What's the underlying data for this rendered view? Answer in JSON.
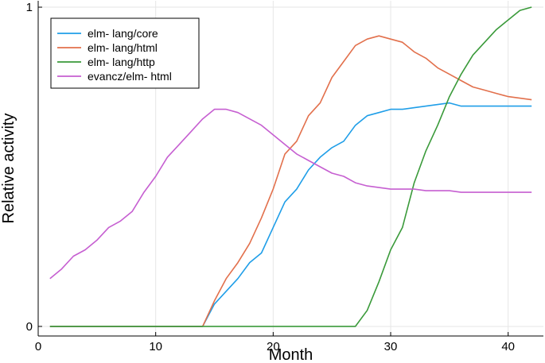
{
  "chart_data": {
    "type": "line",
    "xlabel": "Month",
    "ylabel": "Relative activity",
    "xlim": [
      0,
      43
    ],
    "ylim": [
      -0.03,
      1.02
    ],
    "xticks": [
      0,
      10,
      20,
      30,
      40
    ],
    "yticks": [
      0,
      1
    ],
    "grid": true,
    "legend_position": "top-left",
    "x": [
      1,
      2,
      3,
      4,
      5,
      6,
      7,
      8,
      9,
      10,
      11,
      12,
      13,
      14,
      15,
      16,
      17,
      18,
      19,
      20,
      21,
      22,
      23,
      24,
      25,
      26,
      27,
      28,
      29,
      30,
      31,
      32,
      33,
      34,
      35,
      36,
      37,
      38,
      39,
      40,
      41,
      42
    ],
    "series": [
      {
        "name": "elm- lang/core",
        "color": "#1f9ee8",
        "values": [
          0,
          0,
          0,
          0,
          0,
          0,
          0,
          0,
          0,
          0,
          0,
          0,
          0,
          0,
          0.07,
          0.11,
          0.15,
          0.2,
          0.23,
          0.31,
          0.39,
          0.43,
          0.49,
          0.53,
          0.56,
          0.58,
          0.63,
          0.66,
          0.67,
          0.68,
          0.68,
          0.685,
          0.69,
          0.695,
          0.7,
          0.69,
          0.69,
          0.69,
          0.69,
          0.69,
          0.69,
          0.69
        ]
      },
      {
        "name": "elm- lang/html",
        "color": "#e2704c",
        "values": [
          0,
          0,
          0,
          0,
          0,
          0,
          0,
          0,
          0,
          0,
          0,
          0,
          0,
          0,
          0.08,
          0.15,
          0.2,
          0.26,
          0.34,
          0.43,
          0.54,
          0.58,
          0.66,
          0.7,
          0.78,
          0.83,
          0.88,
          0.9,
          0.91,
          0.9,
          0.89,
          0.86,
          0.84,
          0.81,
          0.79,
          0.77,
          0.75,
          0.74,
          0.73,
          0.72,
          0.715,
          0.71
        ]
      },
      {
        "name": "elm- lang/http",
        "color": "#3a9a3a",
        "values": [
          0,
          0,
          0,
          0,
          0,
          0,
          0,
          0,
          0,
          0,
          0,
          0,
          0,
          0,
          0,
          0,
          0,
          0,
          0,
          0,
          0,
          0,
          0,
          0,
          0,
          0,
          0,
          0.05,
          0.14,
          0.24,
          0.31,
          0.45,
          0.55,
          0.63,
          0.72,
          0.79,
          0.85,
          0.89,
          0.93,
          0.96,
          0.99,
          1.0
        ]
      },
      {
        "name": "evancz/elm- html",
        "color": "#c65fd1",
        "values": [
          0.15,
          0.18,
          0.22,
          0.24,
          0.27,
          0.31,
          0.33,
          0.36,
          0.42,
          0.47,
          0.53,
          0.57,
          0.61,
          0.65,
          0.68,
          0.68,
          0.67,
          0.65,
          0.63,
          0.6,
          0.57,
          0.54,
          0.52,
          0.5,
          0.48,
          0.47,
          0.45,
          0.44,
          0.435,
          0.43,
          0.43,
          0.43,
          0.425,
          0.425,
          0.425,
          0.42,
          0.42,
          0.42,
          0.42,
          0.42,
          0.42,
          0.42
        ]
      }
    ]
  }
}
